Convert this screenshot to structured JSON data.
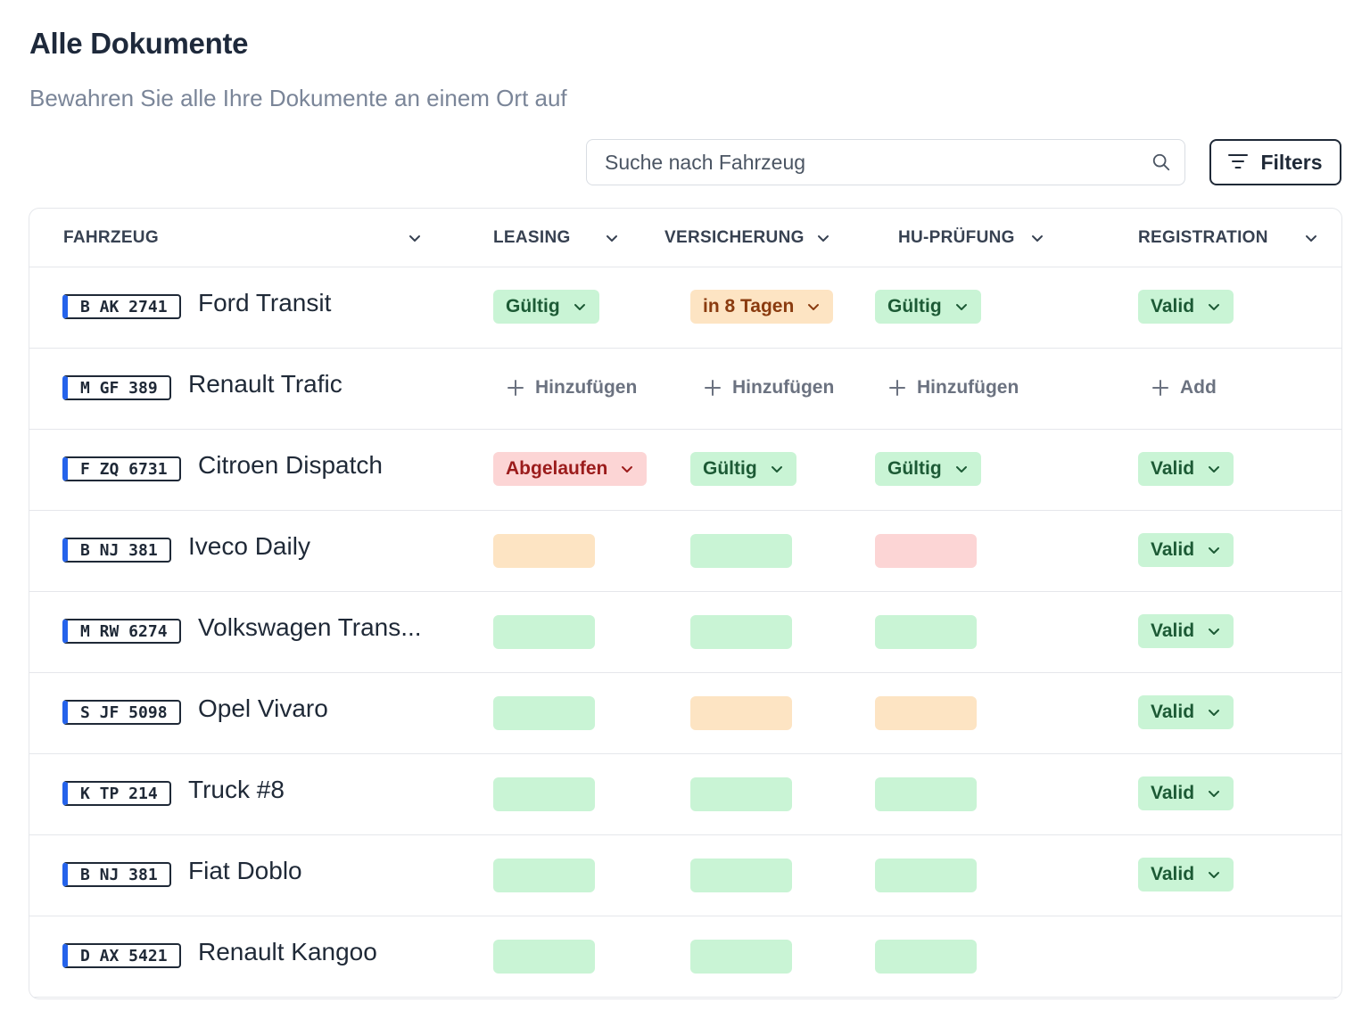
{
  "page": {
    "title": "Alle Dokumente",
    "subtitle": "Bewahren Sie alle Ihre Dokumente an einem Ort auf"
  },
  "search": {
    "placeholder": "Suche nach Fahrzeug",
    "icon": "search-icon"
  },
  "filters": {
    "label": "Filters",
    "icon": "filter-lines-icon"
  },
  "columns": {
    "fahrzeug": "FAHRZEUG",
    "leasing": "LEASING",
    "versicherung": "VERSICHERUNG",
    "hu": "HU-PRÜFUNG",
    "registration": "REGISTRATION"
  },
  "colors": {
    "valid_bg": "#c9f4d5",
    "warning_bg": "#fde4c3",
    "expired_bg": "#fcd5d5",
    "plate_accent": "#2563eb"
  },
  "rows": [
    {
      "plate": "B AK 2741",
      "name": "Ford Transit",
      "leasing": "Gültig",
      "versicherung": "in 8 Tagen",
      "hu": "Gültig",
      "registration": "Valid"
    },
    {
      "plate": "M GF 389",
      "name": "Renault Trafic",
      "leasing": "Hinzufügen",
      "versicherung": "Hinzufügen",
      "hu": "Hinzufügen",
      "registration": "Add"
    },
    {
      "plate": "F ZQ 6731",
      "name": "Citroen Dispatch",
      "leasing": "Abgelaufen",
      "versicherung": "Gültig",
      "hu": "Gültig",
      "registration": "Valid"
    },
    {
      "plate": "B NJ 381",
      "name": "Iveco Daily",
      "registration": "Valid"
    },
    {
      "plate": "M RW 6274",
      "name": "Volkswagen Trans...",
      "registration": "Valid"
    },
    {
      "plate": "S JF 5098",
      "name": "Opel Vivaro",
      "registration": "Valid"
    },
    {
      "plate": "K TP 214",
      "name": "Truck #8",
      "registration": "Valid"
    },
    {
      "plate": "B NJ 381",
      "name": "Fiat Doblo",
      "registration": "Valid"
    },
    {
      "plate": "D AX 5421",
      "name": "Renault Kangoo"
    }
  ]
}
